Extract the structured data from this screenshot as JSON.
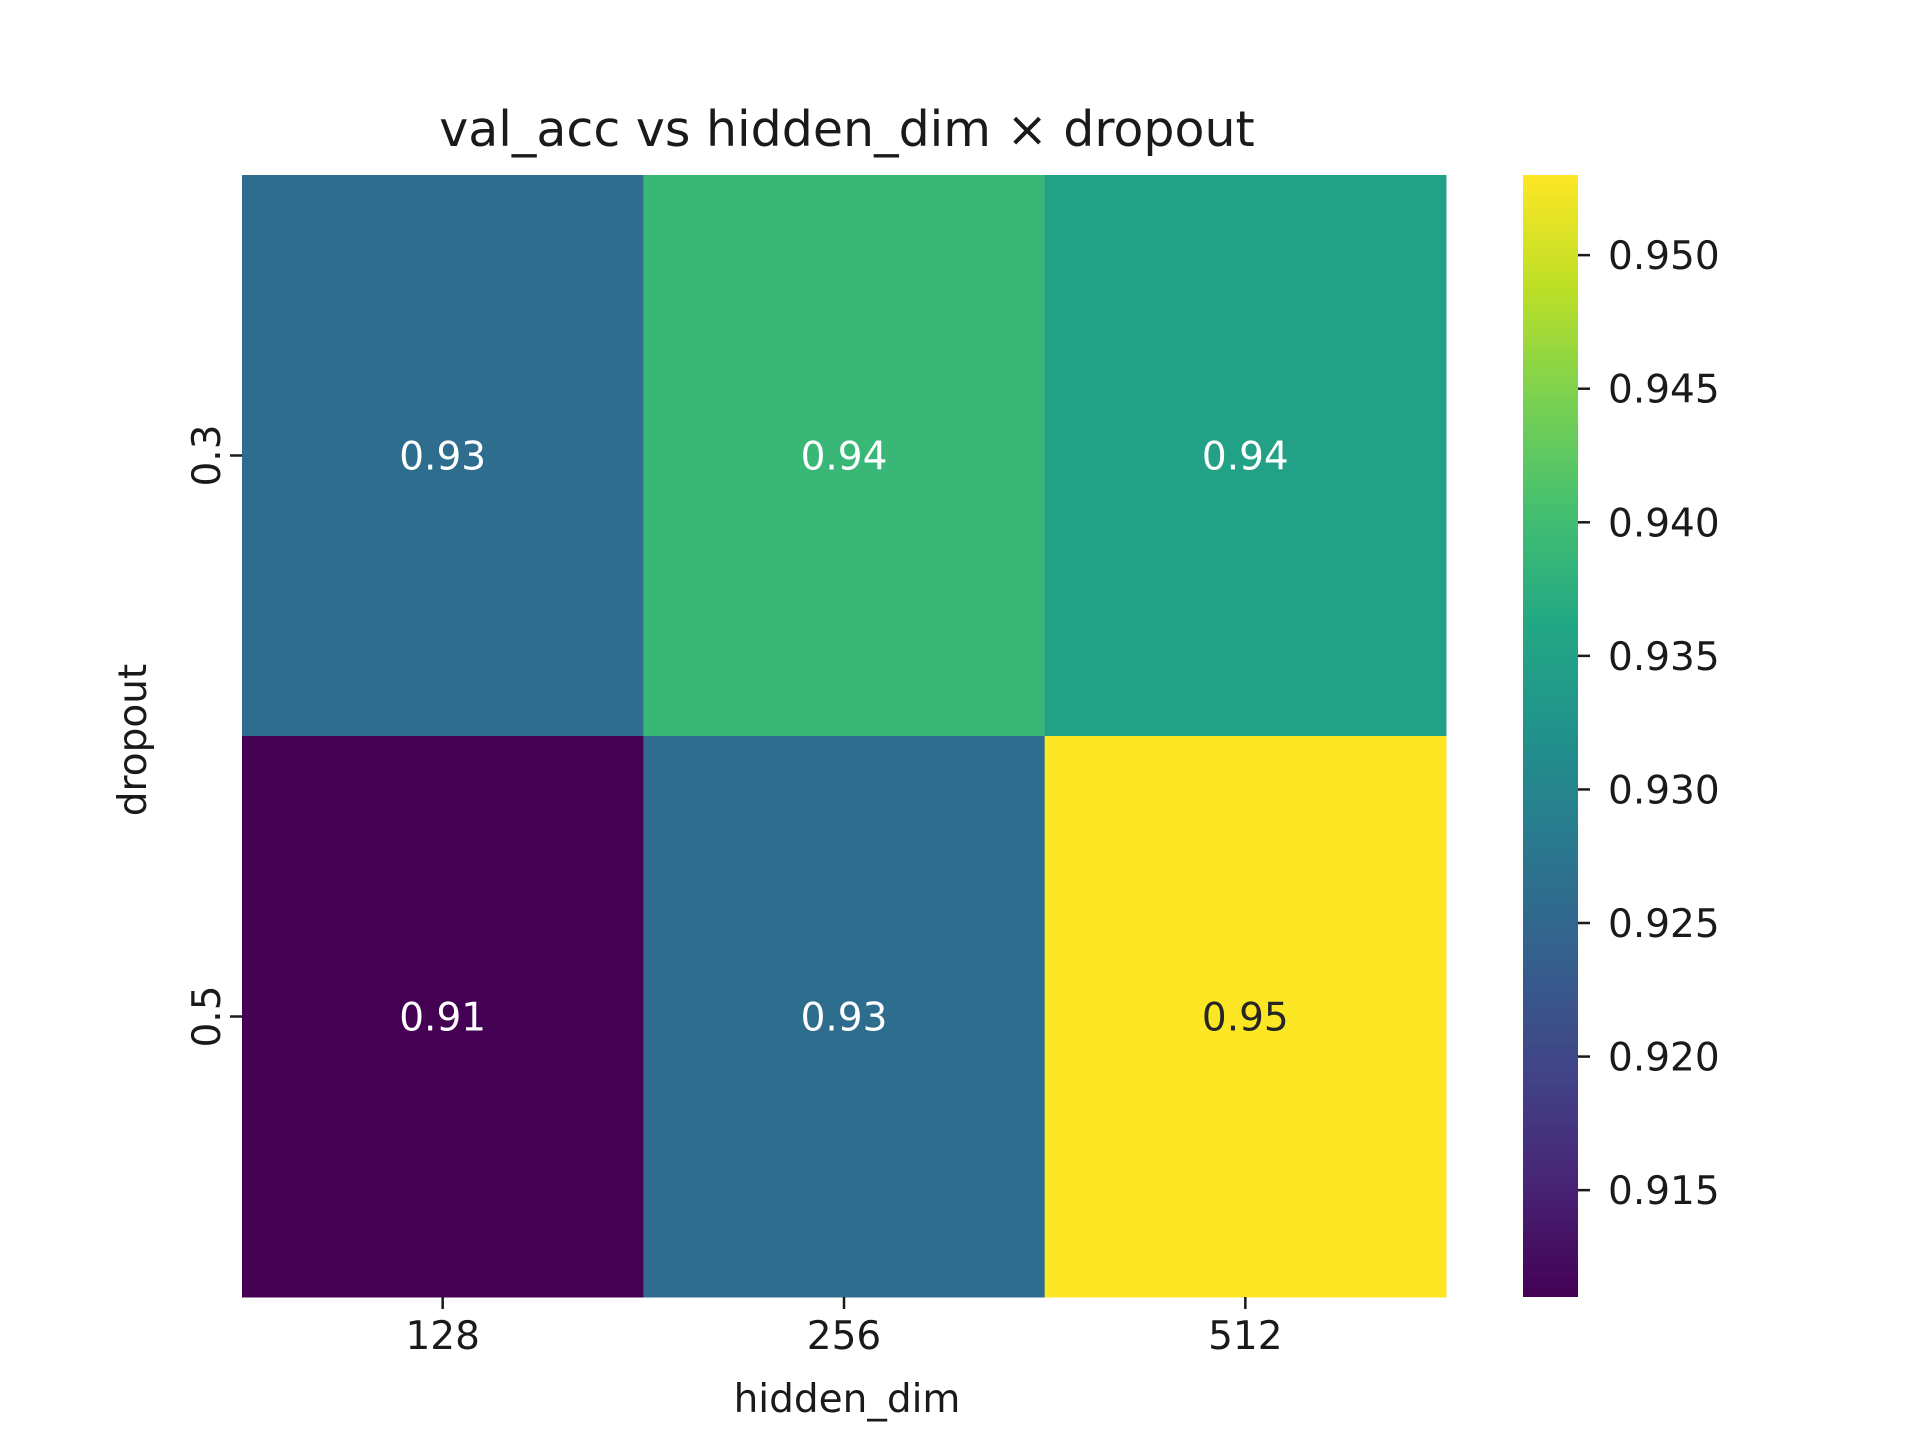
{
  "chart_data": {
    "type": "heatmap",
    "title": "val_acc vs hidden_dim × dropout",
    "xlabel": "hidden_dim",
    "ylabel": "dropout",
    "x_categories": [
      "128",
      "256",
      "512"
    ],
    "y_categories": [
      "0.3",
      "0.5"
    ],
    "values": [
      [
        0.926,
        0.939,
        0.935
      ],
      [
        0.911,
        0.926,
        0.953
      ]
    ],
    "cell_labels": [
      [
        "0.93",
        "0.94",
        "0.94"
      ],
      [
        "0.91",
        "0.93",
        "0.95"
      ]
    ],
    "colorbar": {
      "min": 0.911,
      "max": 0.953,
      "ticks": [
        "0.915",
        "0.920",
        "0.925",
        "0.930",
        "0.935",
        "0.940",
        "0.945",
        "0.950"
      ]
    },
    "colormap": "viridis",
    "grid": false
  }
}
